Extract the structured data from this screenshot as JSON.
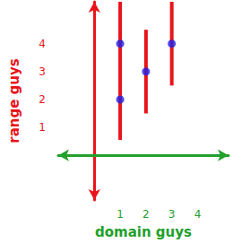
{
  "chart_data": {
    "type": "scatter",
    "x_label": "domain guys",
    "y_label": "range guys",
    "xlim": [
      -1.4,
      5.2
    ],
    "ylim": [
      -1.6,
      5.5
    ],
    "xticks": [
      1,
      2,
      3,
      4
    ],
    "yticks": [
      1,
      2,
      3,
      4
    ],
    "grid": false,
    "series": [
      {
        "type": "line",
        "color": "#e8141a",
        "x": [
          1,
          1
        ],
        "values": [
          0.55,
          5.5
        ]
      },
      {
        "type": "line",
        "color": "#e8141a",
        "x": [
          2,
          2
        ],
        "values": [
          1.5,
          4.5
        ]
      },
      {
        "type": "line",
        "color": "#e8141a",
        "x": [
          3,
          3
        ],
        "values": [
          2.5,
          5.5
        ]
      },
      {
        "type": "scatter",
        "color": "#1f1fe6",
        "x": [
          1,
          1,
          2,
          3
        ],
        "values": [
          2,
          4,
          3,
          4
        ]
      }
    ]
  }
}
